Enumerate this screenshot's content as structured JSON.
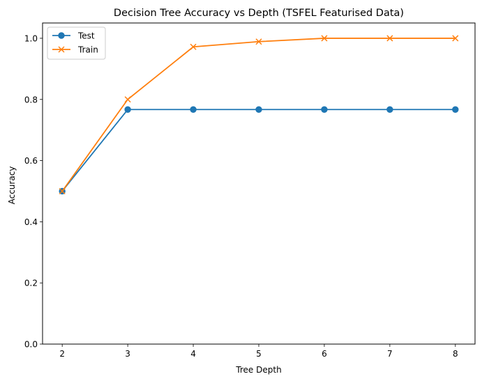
{
  "chart_data": {
    "type": "line",
    "title": "Decision Tree Accuracy vs Depth (TSFEL Featurised Data)",
    "xlabel": "Tree Depth",
    "ylabel": "Accuracy",
    "x": [
      2,
      3,
      4,
      5,
      6,
      7,
      8
    ],
    "xlim": [
      1.7,
      8.3
    ],
    "ylim": [
      0.0,
      1.05
    ],
    "xticks": [
      2,
      3,
      4,
      5,
      6,
      7,
      8
    ],
    "yticks": [
      0.0,
      0.2,
      0.4,
      0.6,
      0.8,
      1.0
    ],
    "ytick_labels": [
      "0.0",
      "0.2",
      "0.4",
      "0.6",
      "0.8",
      "1.0"
    ],
    "grid": false,
    "legend_position": "top-left",
    "series": [
      {
        "name": "Test",
        "values": [
          0.5,
          0.767,
          0.767,
          0.767,
          0.767,
          0.767,
          0.767
        ],
        "color": "#1f77b4",
        "marker": "circle"
      },
      {
        "name": "Train",
        "values": [
          0.5,
          0.8,
          0.972,
          0.989,
          1.0,
          1.0,
          1.0
        ],
        "color": "#ff7f0e",
        "marker": "x"
      }
    ]
  }
}
